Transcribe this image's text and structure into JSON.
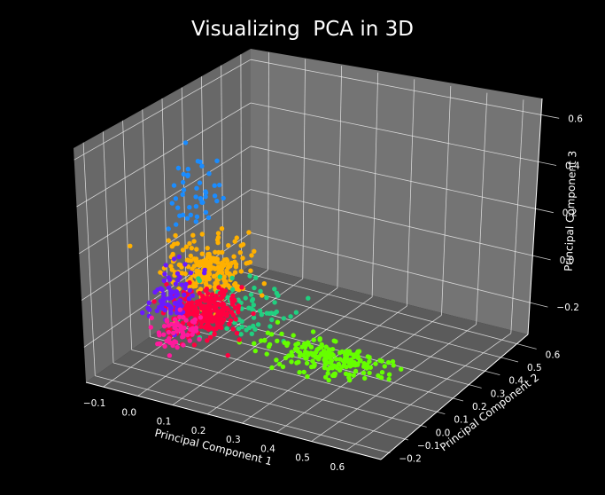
{
  "chart_data": {
    "type": "scatter",
    "title": "Visualizing  PCA in 3D",
    "xlabel": "Principal Component 1",
    "ylabel": "Principal Component 2",
    "zlabel": "Principal Component 3",
    "xlim": [
      -0.15,
      0.7
    ],
    "ylim": [
      -0.25,
      0.65
    ],
    "zlim": [
      -0.35,
      0.65
    ],
    "xticks": [
      "−0.1",
      "0.0",
      "0.1",
      "0.2",
      "0.3",
      "0.4",
      "0.5",
      "0.6"
    ],
    "yticks": [
      "−0.2",
      "−0.1",
      "0.0",
      "0.1",
      "0.2",
      "0.3",
      "0.4",
      "0.5",
      "0.6"
    ],
    "zticks": [
      "−0.2",
      "0.0",
      "0.2",
      "0.4",
      "0.6"
    ],
    "grid": true,
    "background": "#000000",
    "pane_color": "#7a7a7a",
    "series": [
      {
        "color": "#1a8cff",
        "cx": 0.02,
        "cy": 0.05,
        "cz": 0.3,
        "sx": 0.025,
        "sy": 0.05,
        "sz": 0.12,
        "n": 45
      },
      {
        "color": "#ffb000",
        "cx": 0.05,
        "cy": 0.05,
        "cz": 0.05,
        "sx": 0.05,
        "sy": 0.06,
        "sz": 0.06,
        "n": 220
      },
      {
        "color": "#20d080",
        "cx": 0.17,
        "cy": 0.04,
        "cz": -0.05,
        "sx": 0.06,
        "sy": 0.05,
        "sz": 0.05,
        "n": 70
      },
      {
        "color": "#66ff00",
        "cx": 0.4,
        "cy": 0.02,
        "cz": -0.18,
        "sx": 0.09,
        "sy": 0.04,
        "sz": 0.03,
        "n": 200
      },
      {
        "color": "#ff0040",
        "cx": 0.05,
        "cy": 0.03,
        "cz": -0.12,
        "sx": 0.04,
        "sy": 0.05,
        "sz": 0.04,
        "n": 260
      },
      {
        "color": "#6a1aff",
        "cx": -0.04,
        "cy": 0.02,
        "cz": -0.1,
        "sx": 0.02,
        "sy": 0.05,
        "sz": 0.06,
        "n": 70
      },
      {
        "color": "#ff1a9c",
        "cx": -0.02,
        "cy": 0.0,
        "cz": -0.22,
        "sx": 0.02,
        "sy": 0.04,
        "sz": 0.04,
        "n": 60
      }
    ]
  }
}
